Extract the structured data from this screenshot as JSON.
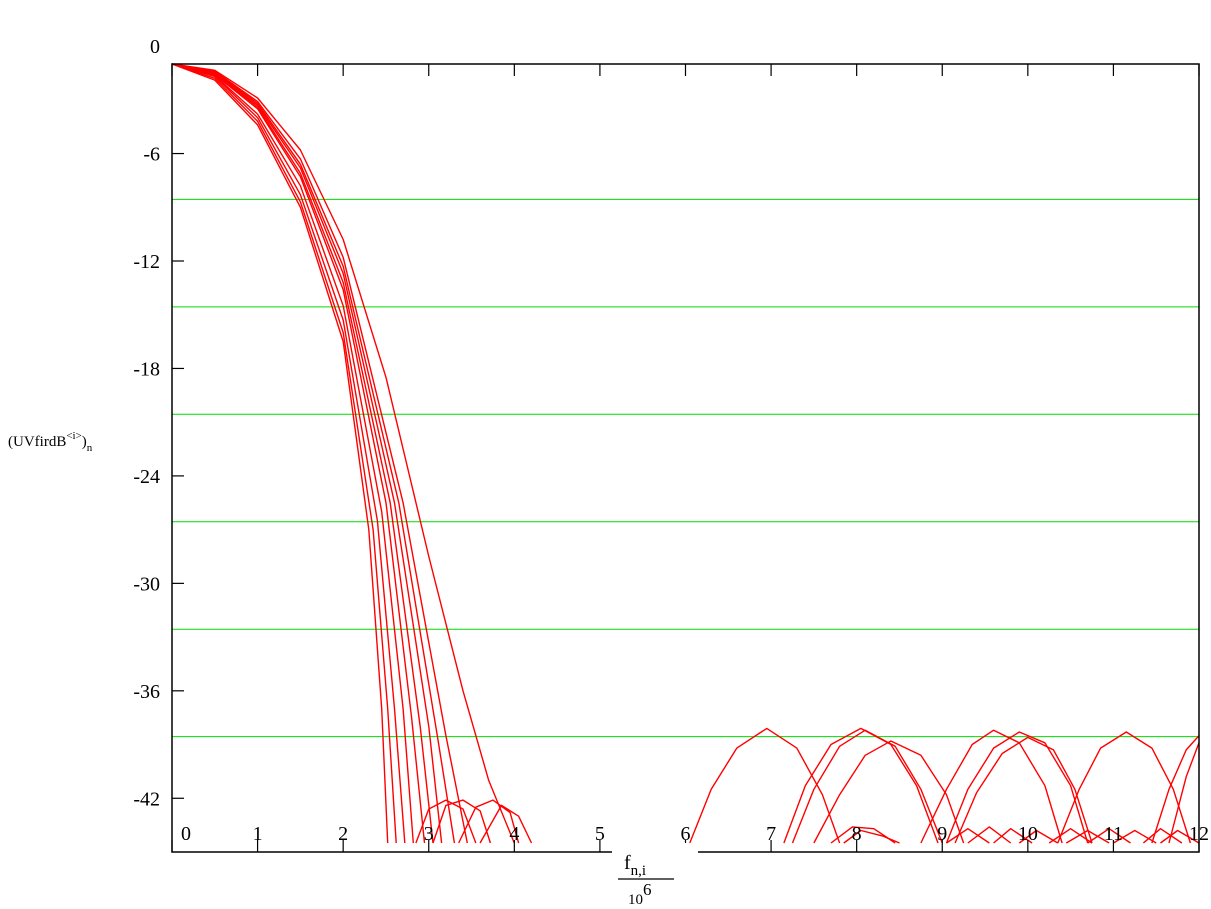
{
  "chart_data": {
    "type": "line",
    "title": "",
    "ylabel": "(UVfirdB<i>)n",
    "ylabel_parts": {
      "base": "(UVfirdB",
      "sup": "<i>",
      "close": ")",
      "sub": "n"
    },
    "xlabel": "f_n,i / 10^6",
    "xlabel_parts": {
      "num_base": "f",
      "num_sub": "n,i",
      "den_base": "10",
      "den_sup": "6"
    },
    "xlim": [
      0,
      12
    ],
    "ylim": [
      -45,
      -1
    ],
    "x_ticks": [
      0,
      1,
      2,
      3,
      4,
      5,
      6,
      7,
      8,
      9,
      10,
      11,
      12
    ],
    "x_tick_labels": [
      "0",
      "1",
      "2",
      "3",
      "4",
      "5",
      "6",
      "7",
      "8",
      "9",
      "10",
      "11",
      "12"
    ],
    "y_ticks": [
      -42,
      -36,
      -30,
      -24,
      -18,
      -12,
      -6,
      0
    ],
    "y_tick_labels": [
      "-42",
      "-36",
      "-30",
      "-24",
      "-18",
      "-12",
      "-6",
      "0"
    ],
    "gridlines_y": [
      -8.56,
      -14.56,
      -20.56,
      -26.56,
      -32.56,
      -38.56
    ],
    "grid": true,
    "colors": {
      "series": "#ff0000",
      "grid": "#00dd00",
      "axis": "#000000"
    },
    "series": [
      {
        "values": [
          [
            0,
            -1
          ],
          [
            0.5,
            -1.9
          ],
          [
            1,
            -4.4
          ],
          [
            1.5,
            -9
          ],
          [
            2,
            -16.5
          ],
          [
            2.3,
            -27
          ],
          [
            2.45,
            -37
          ],
          [
            2.52,
            -44.5
          ]
        ]
      },
      {
        "values": [
          [
            0,
            -1
          ],
          [
            0.5,
            -1.8
          ],
          [
            1,
            -4.2
          ],
          [
            1.5,
            -8.7
          ],
          [
            2,
            -16
          ],
          [
            2.35,
            -27
          ],
          [
            2.52,
            -37
          ],
          [
            2.62,
            -44.5
          ]
        ]
      },
      {
        "values": [
          [
            0,
            -1
          ],
          [
            0.5,
            -1.7
          ],
          [
            1,
            -4
          ],
          [
            1.5,
            -8.3
          ],
          [
            2,
            -15.3
          ],
          [
            2.4,
            -26.5
          ],
          [
            2.6,
            -37
          ],
          [
            2.72,
            -44.5
          ]
        ]
      },
      {
        "values": [
          [
            0,
            -1
          ],
          [
            0.5,
            -1.65
          ],
          [
            1,
            -3.8
          ],
          [
            1.5,
            -7.8
          ],
          [
            2,
            -14.5
          ],
          [
            2.45,
            -26
          ],
          [
            2.7,
            -37
          ],
          [
            2.82,
            -44.5
          ]
        ]
      },
      {
        "values": [
          [
            0,
            -1
          ],
          [
            0.5,
            -1.6
          ],
          [
            1,
            -3.5
          ],
          [
            1.5,
            -7.3
          ],
          [
            2,
            -13.6
          ],
          [
            2.5,
            -25.5
          ],
          [
            2.8,
            -37.5
          ],
          [
            2.95,
            -44.5
          ]
        ]
      },
      {
        "values": [
          [
            0,
            -1
          ],
          [
            0.5,
            -1.55
          ],
          [
            1,
            -3.4
          ],
          [
            1.5,
            -7.1
          ],
          [
            2,
            -13.2
          ],
          [
            2.55,
            -25.5
          ],
          [
            2.9,
            -38
          ],
          [
            3.05,
            -44.5
          ]
        ]
      },
      {
        "values": [
          [
            0,
            -1
          ],
          [
            0.5,
            -1.5
          ],
          [
            1,
            -3.3
          ],
          [
            1.5,
            -6.8
          ],
          [
            2,
            -12.7
          ],
          [
            2.6,
            -25.5
          ],
          [
            3,
            -38
          ],
          [
            3.15,
            -44.5
          ]
        ]
      },
      {
        "values": [
          [
            0,
            -1
          ],
          [
            0.5,
            -1.45
          ],
          [
            1,
            -3.2
          ],
          [
            1.5,
            -6.6
          ],
          [
            2,
            -12.3
          ],
          [
            2.65,
            -25.5
          ],
          [
            3.1,
            -38.5
          ],
          [
            3.3,
            -44.5
          ]
        ]
      },
      {
        "values": [
          [
            0,
            -1
          ],
          [
            0.5,
            -1.4
          ],
          [
            1,
            -3.1
          ],
          [
            1.5,
            -6.3
          ],
          [
            2,
            -11.8
          ],
          [
            2.7,
            -25.5
          ],
          [
            3.2,
            -38.5
          ],
          [
            3.45,
            -44.5
          ]
        ]
      },
      {
        "values": [
          [
            0,
            -1
          ],
          [
            0.5,
            -1.35
          ],
          [
            1,
            -2.9
          ],
          [
            1.5,
            -5.8
          ],
          [
            2,
            -10.8
          ],
          [
            2.5,
            -18.5
          ],
          [
            3,
            -28.5
          ],
          [
            3.4,
            -36
          ],
          [
            3.7,
            -41
          ],
          [
            4,
            -44.5
          ]
        ]
      },
      {
        "values": [
          [
            2.85,
            -44.5
          ],
          [
            3.0,
            -42.6
          ],
          [
            3.2,
            -42.1
          ],
          [
            3.4,
            -42.6
          ],
          [
            3.55,
            -44.5
          ]
        ]
      },
      {
        "values": [
          [
            3.05,
            -44.5
          ],
          [
            3.2,
            -42.4
          ],
          [
            3.4,
            -42.1
          ],
          [
            3.6,
            -42.7
          ],
          [
            3.72,
            -44.5
          ]
        ]
      },
      {
        "values": [
          [
            3.35,
            -44.5
          ],
          [
            3.55,
            -42.5
          ],
          [
            3.75,
            -42.1
          ],
          [
            3.95,
            -42.8
          ],
          [
            4.05,
            -44.5
          ]
        ]
      },
      {
        "values": [
          [
            3.6,
            -44.5
          ],
          [
            3.85,
            -42.4
          ],
          [
            4.05,
            -43
          ],
          [
            4.2,
            -44.5
          ]
        ]
      },
      {
        "values": [
          [
            6.05,
            -44.5
          ],
          [
            6.3,
            -41.5
          ],
          [
            6.6,
            -39.2
          ],
          [
            6.95,
            -38.1
          ],
          [
            7.3,
            -39.2
          ],
          [
            7.6,
            -41.8
          ],
          [
            7.8,
            -44.5
          ]
        ]
      },
      {
        "values": [
          [
            7.15,
            -44.5
          ],
          [
            7.4,
            -41.3
          ],
          [
            7.7,
            -39
          ],
          [
            8.05,
            -38.1
          ],
          [
            8.4,
            -39
          ],
          [
            8.7,
            -41.3
          ],
          [
            8.95,
            -44.5
          ]
        ]
      },
      {
        "values": [
          [
            7.25,
            -44.5
          ],
          [
            7.5,
            -41.5
          ],
          [
            7.8,
            -39.1
          ],
          [
            8.1,
            -38.2
          ],
          [
            8.45,
            -39.1
          ],
          [
            8.75,
            -41.5
          ],
          [
            9,
            -44.5
          ]
        ]
      },
      {
        "values": [
          [
            7.5,
            -44.5
          ],
          [
            7.8,
            -41.8
          ],
          [
            8.1,
            -39.6
          ],
          [
            8.4,
            -38.8
          ],
          [
            8.75,
            -39.6
          ],
          [
            9.05,
            -41.8
          ],
          [
            9.25,
            -44.5
          ]
        ]
      },
      {
        "values": [
          [
            8.75,
            -44.5
          ],
          [
            9.05,
            -41.5
          ],
          [
            9.35,
            -39
          ],
          [
            9.6,
            -38.2
          ],
          [
            9.9,
            -38.9
          ],
          [
            10.2,
            -41.3
          ],
          [
            10.4,
            -44.5
          ]
        ]
      },
      {
        "values": [
          [
            9.05,
            -44.5
          ],
          [
            9.3,
            -41.5
          ],
          [
            9.6,
            -39.2
          ],
          [
            9.9,
            -38.3
          ],
          [
            10.2,
            -38.9
          ],
          [
            10.5,
            -41.3
          ],
          [
            10.7,
            -44.5
          ]
        ]
      },
      {
        "values": [
          [
            9.15,
            -44.5
          ],
          [
            9.4,
            -41.7
          ],
          [
            9.7,
            -39.5
          ],
          [
            10,
            -38.6
          ],
          [
            10.3,
            -39.3
          ],
          [
            10.55,
            -41.5
          ],
          [
            10.75,
            -44.5
          ]
        ]
      },
      {
        "values": [
          [
            10.35,
            -44.5
          ],
          [
            10.6,
            -41.5
          ],
          [
            10.85,
            -39.2
          ],
          [
            11.15,
            -38.3
          ],
          [
            11.45,
            -39.2
          ],
          [
            11.7,
            -41.5
          ],
          [
            11.9,
            -44.5
          ]
        ]
      },
      {
        "values": [
          [
            11.45,
            -44.5
          ],
          [
            11.65,
            -41.5
          ],
          [
            11.85,
            -39.3
          ],
          [
            12,
            -38.5
          ]
        ]
      },
      {
        "values": [
          [
            11.65,
            -44.5
          ],
          [
            11.85,
            -40.8
          ],
          [
            12,
            -38.9
          ]
        ]
      },
      {
        "values": [
          [
            7.7,
            -44.5
          ],
          [
            7.95,
            -43.6
          ],
          [
            8.2,
            -43.7
          ],
          [
            8.45,
            -44.5
          ]
        ]
      },
      {
        "values": [
          [
            7.85,
            -44.5
          ],
          [
            8.05,
            -43.8
          ],
          [
            8.3,
            -44.1
          ],
          [
            8.5,
            -44.5
          ]
        ]
      },
      {
        "values": [
          [
            9.05,
            -44.5
          ],
          [
            9.3,
            -43.7
          ],
          [
            9.55,
            -44.5
          ]
        ]
      },
      {
        "values": [
          [
            9.3,
            -44.5
          ],
          [
            9.55,
            -43.6
          ],
          [
            9.8,
            -44.5
          ]
        ]
      },
      {
        "values": [
          [
            9.6,
            -44.5
          ],
          [
            9.8,
            -43.7
          ],
          [
            10.05,
            -44.5
          ]
        ]
      },
      {
        "values": [
          [
            9.9,
            -44.5
          ],
          [
            10.1,
            -43.8
          ],
          [
            10.35,
            -44.5
          ]
        ]
      },
      {
        "values": [
          [
            10.25,
            -44.5
          ],
          [
            10.5,
            -43.7
          ],
          [
            10.75,
            -44.5
          ]
        ]
      },
      {
        "values": [
          [
            10.45,
            -44.5
          ],
          [
            10.7,
            -43.8
          ],
          [
            10.95,
            -44.5
          ]
        ]
      },
      {
        "values": [
          [
            10.7,
            -44.5
          ],
          [
            10.95,
            -43.7
          ],
          [
            11.2,
            -44.5
          ]
        ]
      },
      {
        "values": [
          [
            11.0,
            -44.5
          ],
          [
            11.25,
            -43.8
          ],
          [
            11.5,
            -44.5
          ]
        ]
      },
      {
        "values": [
          [
            11.35,
            -44.5
          ],
          [
            11.55,
            -43.7
          ],
          [
            11.8,
            -44.5
          ]
        ]
      },
      {
        "values": [
          [
            11.55,
            -44.5
          ],
          [
            11.75,
            -43.8
          ],
          [
            12,
            -44.5
          ]
        ]
      }
    ]
  }
}
